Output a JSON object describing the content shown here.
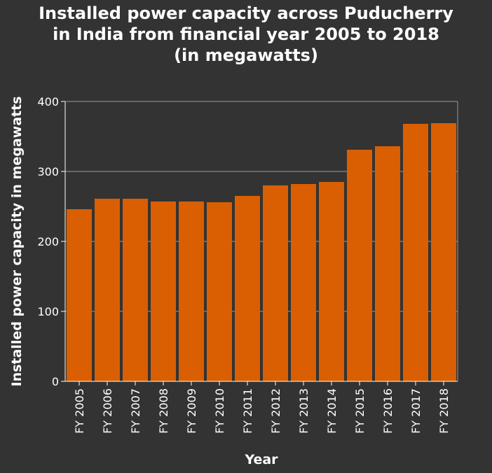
{
  "chart_data": {
    "type": "bar",
    "title_lines": [
      "Installed power capacity across Puducherry",
      "in India from financial year 2005 to 2018",
      "(in megawatts)"
    ],
    "xlabel": "Year",
    "ylabel": "Installed power capacity in megawatts",
    "categories": [
      "FY 2005",
      "FY 2006",
      "FY 2007",
      "FY 2008",
      "FY 2009",
      "FY 2010",
      "FY 2011",
      "FY 2012",
      "FY 2013",
      "FY 2014",
      "FY 2015",
      "FY 2016",
      "FY 2017",
      "FY 2018"
    ],
    "values": [
      246,
      261,
      261,
      257,
      257,
      256,
      265,
      280,
      282,
      285,
      331,
      336,
      368,
      369
    ],
    "ylim": [
      0,
      400
    ],
    "yticks": [
      0,
      100,
      200,
      300,
      400
    ],
    "grid": true,
    "legend": "none"
  },
  "colors": {
    "background": "#333333",
    "bar": "#d95f02",
    "grid": "#9a9a9a",
    "text": "#ffffff"
  }
}
